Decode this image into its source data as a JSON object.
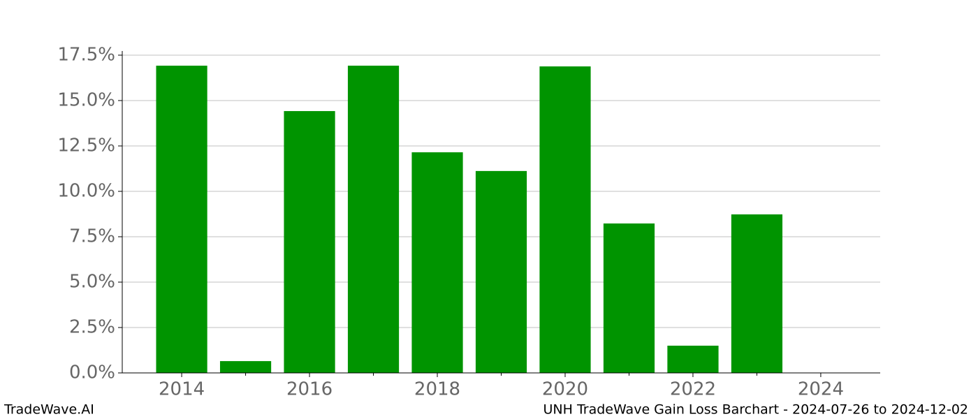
{
  "chart_data": {
    "type": "bar",
    "x": [
      2014,
      2015,
      2016,
      2017,
      2018,
      2019,
      2020,
      2021,
      2022,
      2023
    ],
    "values": [
      16.92,
      0.65,
      14.42,
      16.92,
      12.15,
      11.12,
      16.88,
      8.23,
      1.5,
      8.73
    ],
    "color": "#009400",
    "bar_width": 0.8,
    "xlim": [
      2013.07,
      2024.93
    ],
    "xticks": [
      2014,
      2016,
      2018,
      2020,
      2022,
      2024
    ],
    "xminorticks": [
      2015,
      2017,
      2019,
      2021,
      2023
    ],
    "ylim": [
      0,
      17.73
    ],
    "yticks": [
      {
        "value": 0,
        "label": "0.0%"
      },
      {
        "value": 2.5,
        "label": "2.5%"
      },
      {
        "value": 5,
        "label": "5.0%"
      },
      {
        "value": 7.5,
        "label": "7.5%"
      },
      {
        "value": 10,
        "label": "10.0%"
      },
      {
        "value": 12.5,
        "label": "12.5%"
      },
      {
        "value": 15,
        "label": "15.0%"
      },
      {
        "value": 17.5,
        "label": "17.5%"
      }
    ],
    "grid": true
  },
  "footer": {
    "left": "TradeWave.AI",
    "right": "UNH TradeWave Gain Loss Barchart - 2024-07-26 to 2024-12-02"
  }
}
